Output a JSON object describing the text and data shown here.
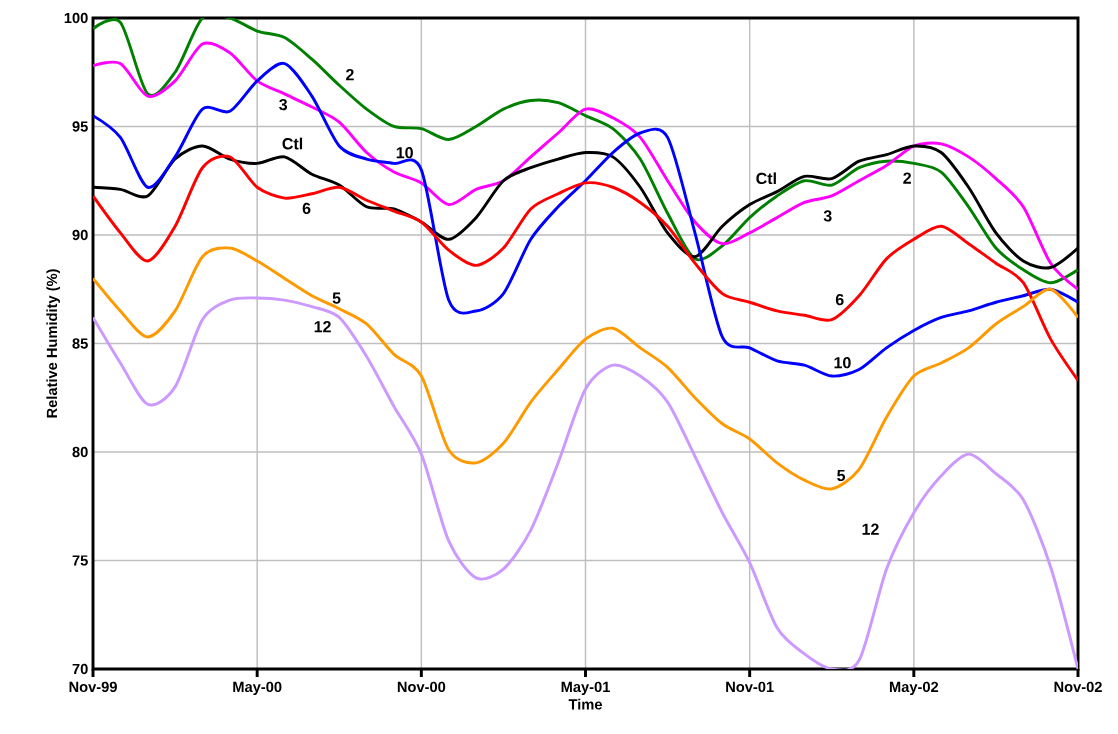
{
  "chart_data": {
    "type": "line",
    "xlabel": "Time",
    "ylabel": "Relative Humidity (%)",
    "x": [
      "1999-11",
      "1999-12",
      "2000-01",
      "2000-02",
      "2000-03",
      "2000-04",
      "2000-05",
      "2000-06",
      "2000-07",
      "2000-08",
      "2000-09",
      "2000-10",
      "2000-11",
      "2000-12",
      "2001-01",
      "2001-02",
      "2001-03",
      "2001-04",
      "2001-05",
      "2001-06",
      "2001-07",
      "2001-08",
      "2001-09",
      "2001-10",
      "2001-11",
      "2001-12",
      "2002-01",
      "2002-02",
      "2002-03",
      "2002-04",
      "2002-05",
      "2002-06",
      "2002-07",
      "2002-08",
      "2002-09",
      "2002-10",
      "2002-11"
    ],
    "series": [
      {
        "name": "2",
        "color": "#008000",
        "values": [
          99.5,
          99.8,
          96.5,
          97.5,
          100,
          100,
          99.4,
          99.1,
          98.1,
          96.9,
          95.8,
          95.0,
          94.9,
          94.4,
          95.0,
          95.8,
          96.2,
          96.1,
          95.5,
          94.9,
          93.5,
          91.0,
          88.9,
          89.5,
          90.8,
          91.8,
          92.5,
          92.3,
          93.1,
          93.4,
          93.3,
          92.9,
          91.3,
          89.4,
          88.4,
          87.8,
          88.4
        ]
      },
      {
        "name": "3",
        "color": "#ff00ff",
        "values": [
          97.8,
          97.9,
          96.4,
          97.1,
          98.8,
          98.4,
          97.1,
          96.5,
          95.9,
          95.2,
          93.8,
          92.9,
          92.4,
          91.4,
          92.1,
          92.5,
          93.6,
          94.7,
          95.8,
          95.4,
          94.5,
          92.5,
          90.6,
          89.6,
          90.1,
          90.8,
          91.5,
          91.8,
          92.5,
          93.2,
          94.1,
          94.2,
          93.6,
          92.6,
          91.3,
          88.7,
          87.5
        ]
      },
      {
        "name": "Ctl",
        "color": "#000000",
        "values": [
          92.2,
          92.1,
          91.8,
          93.5,
          94.1,
          93.5,
          93.3,
          93.6,
          92.8,
          92.3,
          91.3,
          91.2,
          90.6,
          89.8,
          90.8,
          92.5,
          93.1,
          93.5,
          93.8,
          93.6,
          92.2,
          90.1,
          89.0,
          90.4,
          91.4,
          92.0,
          92.7,
          92.6,
          93.4,
          93.7,
          94.1,
          93.8,
          92.2,
          90.1,
          88.8,
          88.5,
          89.4
        ]
      },
      {
        "name": "10",
        "color": "#0000ff",
        "values": [
          95.5,
          94.5,
          92.2,
          93.6,
          95.8,
          95.7,
          97.1,
          97.9,
          96.4,
          94.1,
          93.5,
          93.3,
          93.0,
          87.0,
          86.5,
          87.3,
          89.8,
          91.3,
          92.5,
          93.8,
          94.7,
          94.5,
          90.1,
          85.3,
          84.8,
          84.2,
          84.0,
          83.5,
          83.8,
          84.8,
          85.6,
          86.2,
          86.5,
          86.9,
          87.2,
          87.5,
          86.9
        ]
      },
      {
        "name": "6",
        "color": "#ff0000",
        "values": [
          91.8,
          90.1,
          88.8,
          90.4,
          93.1,
          93.6,
          92.2,
          91.7,
          91.9,
          92.2,
          91.6,
          91.1,
          90.6,
          89.3,
          88.6,
          89.4,
          91.2,
          91.9,
          92.4,
          92.2,
          91.5,
          90.4,
          88.7,
          87.3,
          86.9,
          86.5,
          86.3,
          86.1,
          87.2,
          88.9,
          89.8,
          90.4,
          89.6,
          88.7,
          87.8,
          85.2,
          83.3
        ]
      },
      {
        "name": "5",
        "color": "#ff9900",
        "values": [
          88.0,
          86.5,
          85.3,
          86.5,
          89.0,
          89.4,
          88.8,
          88.0,
          87.2,
          86.6,
          85.9,
          84.5,
          83.5,
          80.1,
          79.5,
          80.4,
          82.3,
          83.8,
          85.2,
          85.7,
          84.8,
          83.9,
          82.5,
          81.3,
          80.6,
          79.5,
          78.7,
          78.3,
          79.2,
          81.6,
          83.5,
          84.1,
          84.8,
          85.9,
          86.7,
          87.5,
          86.2
        ]
      },
      {
        "name": "12",
        "color": "#cc99ff",
        "values": [
          86.2,
          84.1,
          82.2,
          83.0,
          86.1,
          87.0,
          87.1,
          87.0,
          86.7,
          86.2,
          84.4,
          82.1,
          79.9,
          75.9,
          74.2,
          74.6,
          76.4,
          79.5,
          82.9,
          84.0,
          83.5,
          82.3,
          79.8,
          77.2,
          74.9,
          71.9,
          70.7,
          70,
          70.4,
          74.6,
          77.2,
          78.9,
          79.9,
          79.0,
          77.8,
          74.7,
          70
        ]
      }
    ],
    "xlim": [
      "1999-11",
      "2002-11"
    ],
    "xticks": [
      {
        "value": "1999-11",
        "label": "Nov-99"
      },
      {
        "value": "2000-05",
        "label": "May-00"
      },
      {
        "value": "2000-11",
        "label": "Nov-00"
      },
      {
        "value": "2001-05",
        "label": "May-01"
      },
      {
        "value": "2001-11",
        "label": "Nov-01"
      },
      {
        "value": "2002-05",
        "label": "May-02"
      },
      {
        "value": "2002-11",
        "label": "Nov-02"
      }
    ],
    "ylim": [
      70,
      100
    ],
    "yticks": [
      70,
      75,
      80,
      85,
      90,
      95,
      100
    ],
    "grid": true,
    "line_style": "solid"
  }
}
